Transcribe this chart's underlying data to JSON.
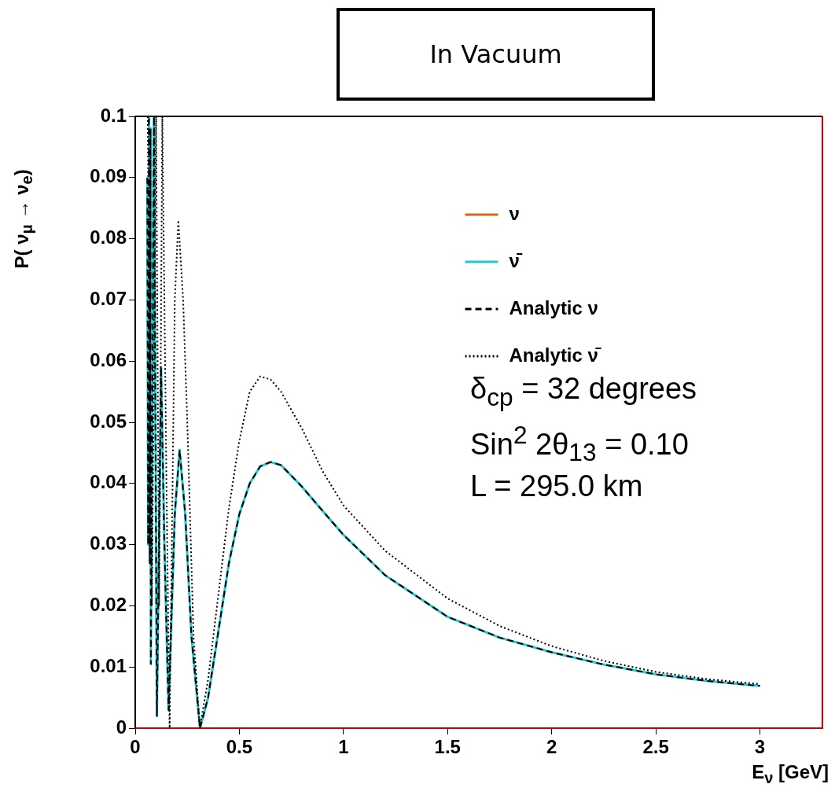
{
  "chart_data": {
    "type": "line",
    "title": "In Vacuum",
    "xlabel": "E$_{ν}$ [GeV]",
    "ylabel": "P( ν$_{μ}$ → ν$_{e}$)",
    "x": [
      0.058,
      0.062,
      0.066,
      0.07,
      0.073,
      0.075,
      0.09,
      0.104,
      0.124,
      0.14,
      0.16,
      0.19,
      0.213,
      0.24,
      0.27,
      0.311,
      0.35,
      0.4,
      0.45,
      0.5,
      0.55,
      0.6,
      0.65,
      0.7,
      0.8,
      0.9,
      1.0,
      1.2,
      1.5,
      1.75,
      2.0,
      2.25,
      2.5,
      2.75,
      3.0
    ],
    "series": [
      {
        "name": "ν",
        "color": "#d2691e",
        "line_style": "solid",
        "values": [
          null,
          null,
          null,
          null,
          null,
          null,
          null,
          null,
          null,
          null,
          null,
          null,
          null,
          null,
          null,
          null,
          null,
          null,
          null,
          null,
          null,
          null,
          null,
          null,
          null,
          null,
          null,
          null,
          null,
          null,
          null,
          null,
          null,
          null,
          null
        ]
      },
      {
        "name": "ν̄",
        "color": "#20c8d0",
        "line_style": "solid",
        "values": [
          0.09,
          0.03,
          0.1,
          0.027,
          0.098,
          0.0105,
          0.1,
          0.002,
          0.059,
          0.03,
          0.003,
          0.035,
          0.0455,
          0.035,
          0.015,
          0,
          0.005,
          0.016,
          0.027,
          0.035,
          0.04,
          0.0428,
          0.0435,
          0.043,
          0.0395,
          0.0355,
          0.0316,
          0.025,
          0.0182,
          0.0148,
          0.0124,
          0.0104,
          0.0088,
          0.0077,
          0.0069
        ]
      },
      {
        "name": "Analytic ν",
        "color": "#000000",
        "line_style": "dashed",
        "values": [
          0.09,
          0.03,
          0.1,
          0.027,
          0.098,
          0.0105,
          0.1,
          0.002,
          0.059,
          0.03,
          0.003,
          0.035,
          0.0455,
          0.035,
          0.015,
          0,
          0.005,
          0.016,
          0.027,
          0.035,
          0.04,
          0.0428,
          0.0435,
          0.043,
          0.0395,
          0.0355,
          0.0316,
          0.025,
          0.0182,
          0.0148,
          0.0124,
          0.0104,
          0.0088,
          0.0077,
          0.0069
        ]
      },
      {
        "name": "Analytic ν̄",
        "color": "#000000",
        "line_style": "dotted",
        "x": [
          0.06,
          0.08,
          0.1,
          0.115,
          0.13,
          0.15,
          0.165,
          0.19,
          0.207,
          0.23,
          0.25,
          0.28,
          0.31,
          0.35,
          0.4,
          0.45,
          0.5,
          0.55,
          0.6,
          0.65,
          0.7,
          0.8,
          0.9,
          1.0,
          1.2,
          1.5,
          1.75,
          2.0,
          2.25,
          2.5,
          2.75,
          3.0
        ],
        "values": [
          0.1,
          0.02,
          0.1,
          0.02,
          0.1,
          0.04,
          0,
          0.07,
          0.083,
          0.07,
          0.05,
          0.015,
          0,
          0.008,
          0.022,
          0.036,
          0.047,
          0.055,
          0.0575,
          0.057,
          0.055,
          0.049,
          0.042,
          0.0364,
          0.029,
          0.0212,
          0.0167,
          0.0134,
          0.011,
          0.0092,
          0.008,
          0.0072
        ]
      }
    ],
    "xlim": [
      0,
      3.3
    ],
    "xticks": [
      0,
      0.5,
      1,
      1.5,
      2,
      2.5,
      3
    ],
    "ylim": [
      0,
      0.1
    ],
    "yticks": [
      0,
      0.01,
      0.02,
      0.03,
      0.04,
      0.05,
      0.06,
      0.07,
      0.08,
      0.09,
      0.1
    ],
    "legend": "top right",
    "grid": false,
    "marker": "none",
    "annotations": [
      "δ$_{cp}$ = 32 degrees",
      "Sin$^{2}$ 2θ$_{13}$ = 0.10",
      "L = 295.0 km"
    ]
  }
}
